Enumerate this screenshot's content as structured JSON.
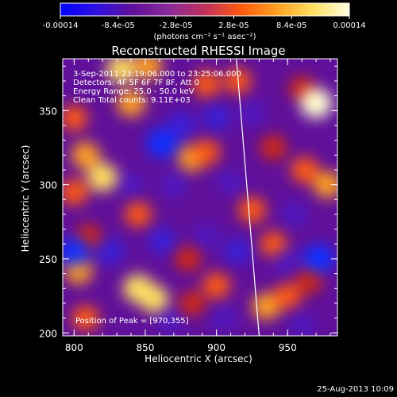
{
  "colorbar": {
    "ticks": [
      "-0.00014",
      "-8.4e-05",
      "-2.8e-05",
      "2.8e-05",
      "8.4e-05",
      "0.00014"
    ],
    "units": "(photons cm⁻² s⁻¹ asec⁻²)",
    "colors": [
      "#0000ff",
      "#3010e0",
      "#60109a",
      "#8a2a9a",
      "#c0305a",
      "#ff5a10",
      "#ffa020",
      "#ffe060",
      "#ffffe0"
    ]
  },
  "chart_data": {
    "type": "heatmap",
    "title": "Reconstructed RHESSI Image",
    "xlabel": "Heliocentric X (arcsec)",
    "ylabel": "Heliocentric Y (arcsec)",
    "xlim": [
      792,
      985
    ],
    "ylim": [
      198,
      385
    ],
    "xticks": [
      "800",
      "850",
      "900",
      "950"
    ],
    "yticks": [
      "200",
      "250",
      "300",
      "350"
    ],
    "xtick_values": [
      800,
      850,
      900,
      950
    ],
    "ytick_values": [
      200,
      250,
      300,
      350
    ],
    "limb_line": [
      [
        914,
        385
      ],
      [
        930,
        198
      ]
    ],
    "info_lines": [
      "3-Sep-2011 23:19:06.000 to 23:25:06.000",
      "Detectors: 4F 5F 6F 7F 8F, Att 0",
      "Energy Range: 25.0 - 50.0 keV",
      "Clean    Total counts: 9.11E+03"
    ],
    "peak_label": "Position of Peak = [970,355]",
    "peak_position": [
      970,
      355
    ],
    "blobs": [
      {
        "x": 833,
        "y": 378,
        "v": 1.0
      },
      {
        "x": 852,
        "y": 380,
        "v": 0.9
      },
      {
        "x": 893,
        "y": 368,
        "v": 0.8
      },
      {
        "x": 915,
        "y": 370,
        "v": 0.7
      },
      {
        "x": 840,
        "y": 355,
        "v": 0.95
      },
      {
        "x": 960,
        "y": 365,
        "v": 0.6
      },
      {
        "x": 970,
        "y": 355,
        "v": 1.3
      },
      {
        "x": 800,
        "y": 345,
        "v": 0.7
      },
      {
        "x": 808,
        "y": 320,
        "v": 0.9
      },
      {
        "x": 820,
        "y": 305,
        "v": 1.1
      },
      {
        "x": 800,
        "y": 295,
        "v": 0.8
      },
      {
        "x": 883,
        "y": 318,
        "v": 0.9
      },
      {
        "x": 893,
        "y": 322,
        "v": 0.7
      },
      {
        "x": 940,
        "y": 325,
        "v": 0.6
      },
      {
        "x": 962,
        "y": 310,
        "v": 0.8
      },
      {
        "x": 978,
        "y": 300,
        "v": 0.9
      },
      {
        "x": 845,
        "y": 280,
        "v": 0.7
      },
      {
        "x": 810,
        "y": 265,
        "v": 0.6
      },
      {
        "x": 925,
        "y": 283,
        "v": 0.8
      },
      {
        "x": 940,
        "y": 260,
        "v": 0.7
      },
      {
        "x": 880,
        "y": 250,
        "v": 0.6
      },
      {
        "x": 803,
        "y": 242,
        "v": 0.9
      },
      {
        "x": 845,
        "y": 230,
        "v": 1.1
      },
      {
        "x": 856,
        "y": 223,
        "v": 1.0
      },
      {
        "x": 900,
        "y": 232,
        "v": 0.8
      },
      {
        "x": 883,
        "y": 220,
        "v": 0.6
      },
      {
        "x": 935,
        "y": 218,
        "v": 0.9
      },
      {
        "x": 950,
        "y": 225,
        "v": 0.7
      },
      {
        "x": 965,
        "y": 235,
        "v": 0.6
      },
      {
        "x": 808,
        "y": 210,
        "v": 0.7
      },
      {
        "x": 862,
        "y": 328,
        "v": -1.3
      },
      {
        "x": 875,
        "y": 340,
        "v": -0.9
      },
      {
        "x": 900,
        "y": 345,
        "v": -0.8
      },
      {
        "x": 925,
        "y": 348,
        "v": -0.7
      },
      {
        "x": 840,
        "y": 300,
        "v": -0.6
      },
      {
        "x": 870,
        "y": 300,
        "v": -0.7
      },
      {
        "x": 910,
        "y": 302,
        "v": -0.6
      },
      {
        "x": 955,
        "y": 280,
        "v": -0.7
      },
      {
        "x": 800,
        "y": 255,
        "v": -1.1
      },
      {
        "x": 825,
        "y": 255,
        "v": -0.9
      },
      {
        "x": 862,
        "y": 262,
        "v": -0.8
      },
      {
        "x": 893,
        "y": 265,
        "v": -0.7
      },
      {
        "x": 915,
        "y": 255,
        "v": -0.8
      },
      {
        "x": 972,
        "y": 250,
        "v": -1.2
      },
      {
        "x": 950,
        "y": 248,
        "v": -0.7
      },
      {
        "x": 868,
        "y": 208,
        "v": -0.7
      },
      {
        "x": 905,
        "y": 210,
        "v": -0.6
      },
      {
        "x": 960,
        "y": 205,
        "v": -0.6
      }
    ]
  },
  "footer": {
    "timestamp": "25-Aug-2013 10:09"
  }
}
